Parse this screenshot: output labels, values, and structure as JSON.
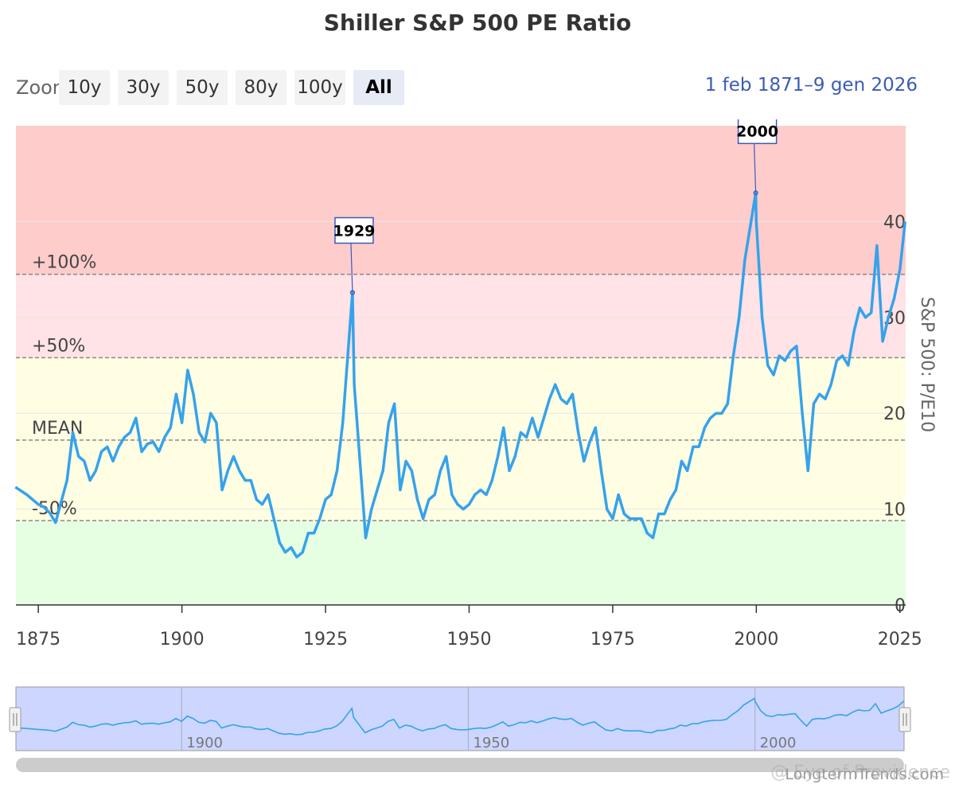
{
  "chart_data": {
    "type": "line",
    "title": "Shiller S&P 500 PE Ratio",
    "ylabel": "S&P 500: P/E10",
    "xlabel": "",
    "xlim": [
      1871.1,
      2026.0
    ],
    "ylim": [
      0,
      50
    ],
    "xticks": [
      1875,
      1900,
      1925,
      1950,
      1975,
      2000,
      2025
    ],
    "yticks": [
      0,
      10,
      20,
      30,
      40
    ],
    "bands": [
      {
        "from": 0,
        "to": 8.8,
        "color": "#e6ffe3"
      },
      {
        "from": 8.8,
        "to": 25.8,
        "color": "#fffee3"
      },
      {
        "from": 25.8,
        "to": 34.5,
        "color": "#ffe3e6"
      },
      {
        "from": 34.5,
        "to": 50,
        "color": "#ffcccc"
      }
    ],
    "reference_lines": [
      {
        "label": "+100%",
        "value": 34.5
      },
      {
        "label": "+50%",
        "value": 25.8
      },
      {
        "label": "MEAN",
        "value": 17.2
      },
      {
        "label": "-50%",
        "value": 8.8
      }
    ],
    "annotations": [
      {
        "label": "1929",
        "x": 1929.7,
        "y": 32.6
      },
      {
        "label": "2000",
        "x": 1999.9,
        "y": 43.0
      }
    ],
    "series": [
      {
        "name": "S&P 500: P/E10",
        "color": "#36a2eb",
        "x": [
          1871,
          1873,
          1875,
          1876,
          1877,
          1878,
          1880,
          1881,
          1882,
          1883,
          1884,
          1885,
          1886,
          1887,
          1888,
          1889,
          1890,
          1891,
          1892,
          1893,
          1894,
          1895,
          1896,
          1897,
          1898,
          1899,
          1900,
          1901,
          1902,
          1903,
          1904,
          1905,
          1906,
          1907,
          1908,
          1909,
          1910,
          1911,
          1912,
          1913,
          1914,
          1915,
          1916,
          1917,
          1918,
          1919,
          1920,
          1921,
          1922,
          1923,
          1924,
          1925,
          1926,
          1927,
          1928,
          1929.7,
          1930,
          1931,
          1932,
          1933,
          1934,
          1935,
          1936,
          1937,
          1938,
          1939,
          1940,
          1941,
          1942,
          1943,
          1944,
          1945,
          1946,
          1947,
          1948,
          1949,
          1950,
          1951,
          1952,
          1953,
          1954,
          1955,
          1956,
          1957,
          1958,
          1959,
          1960,
          1961,
          1962,
          1963,
          1964,
          1965,
          1966,
          1967,
          1968,
          1969,
          1970,
          1971,
          1972,
          1973,
          1974,
          1975,
          1976,
          1977,
          1978,
          1979,
          1980,
          1981,
          1982,
          1983,
          1984,
          1985,
          1986,
          1987,
          1988,
          1989,
          1990,
          1991,
          1992,
          1993,
          1994,
          1995,
          1996,
          1997,
          1998,
          1999.9,
          2000,
          2001,
          2002,
          2003,
          2004,
          2005,
          2006,
          2007,
          2008,
          2009,
          2010,
          2011,
          2012,
          2013,
          2014,
          2015,
          2016,
          2017,
          2018,
          2019,
          2020,
          2021,
          2022,
          2023,
          2024,
          2025,
          2025.9
        ],
        "y": [
          12.3,
          11.5,
          10.5,
          10.2,
          9.6,
          8.6,
          13.0,
          18.0,
          15.5,
          15.0,
          13.0,
          14.0,
          16.0,
          16.5,
          15.0,
          16.5,
          17.5,
          18.0,
          19.5,
          16.0,
          16.8,
          17.0,
          16.0,
          17.5,
          18.5,
          22.0,
          19.0,
          24.5,
          22.0,
          18.0,
          17.0,
          20.0,
          19.0,
          12.0,
          14.0,
          15.5,
          14.0,
          13.0,
          13.0,
          11.0,
          10.5,
          11.5,
          9.0,
          6.5,
          5.5,
          6.0,
          5.0,
          5.5,
          7.5,
          7.5,
          9.0,
          11.0,
          11.5,
          14.0,
          19.0,
          32.6,
          23.0,
          15.0,
          7.0,
          10.0,
          12.0,
          14.0,
          19.0,
          21.0,
          12.0,
          15.0,
          14.0,
          11.0,
          9.0,
          11.0,
          11.5,
          14.0,
          15.5,
          11.5,
          10.5,
          10.0,
          10.5,
          11.5,
          12.0,
          11.5,
          13.0,
          15.5,
          18.5,
          14.0,
          15.5,
          18.0,
          17.5,
          19.5,
          17.5,
          19.5,
          21.5,
          23.0,
          21.5,
          21.0,
          22.0,
          18.0,
          15.0,
          17.0,
          18.5,
          14.0,
          10.0,
          9.0,
          11.5,
          9.5,
          9.0,
          9.0,
          9.0,
          7.5,
          7.0,
          9.5,
          9.5,
          11.0,
          12.0,
          15.0,
          14.0,
          16.5,
          16.5,
          18.5,
          19.5,
          20.0,
          20.0,
          21.0,
          26.0,
          30.0,
          36.0,
          43.0,
          40.0,
          30.0,
          25.0,
          24.0,
          26.0,
          25.5,
          26.5,
          27.0,
          20.0,
          14.0,
          21.0,
          22.0,
          21.5,
          23.0,
          25.5,
          26.0,
          25.0,
          28.5,
          31.0,
          30.0,
          30.5,
          37.5,
          27.5,
          30.0,
          32.0,
          35.0,
          40.0
        ]
      }
    ]
  },
  "toolbar": {
    "zoom_label": "Zoom",
    "buttons": [
      "10y",
      "30y",
      "50y",
      "80y",
      "100y",
      "All"
    ],
    "active": "All"
  },
  "range_selector": {
    "from": "1 feb 1871",
    "to": "9 gen 2026"
  },
  "navigator": {
    "ticks": [
      1900,
      1950,
      2000
    ]
  },
  "credits": {
    "site": "LongtermTrends.com",
    "watermark": "@ Eye of Providence"
  },
  "colors": {
    "line": "#36a2eb",
    "navigator_fill": "#ccd6ff",
    "annotation_border": "#3c5bb5",
    "range_text": "#3c5bb5"
  }
}
